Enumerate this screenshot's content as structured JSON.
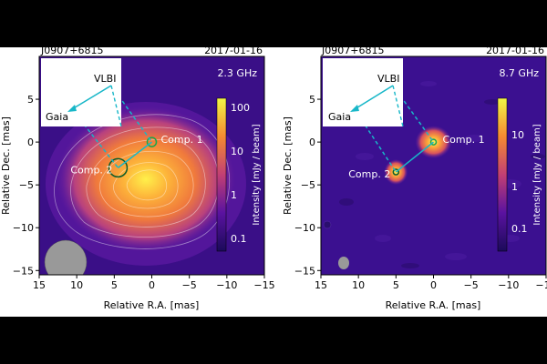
{
  "figure": {
    "panels": [
      {
        "source": "J0907+6815",
        "date": "2017-01-16",
        "frequency": "2.3 GHz",
        "colorbar_label": "Intensity  [mJy / beam]",
        "colorbar_ticks": [
          "100",
          "10",
          "1",
          "0.1"
        ],
        "inset": {
          "top_label": "VLBI",
          "left_label": "Gaia"
        },
        "components": [
          {
            "label": "Comp. 1",
            "x": 0,
            "y": 0
          },
          {
            "label": "Comp. 2",
            "x": 4.5,
            "y": -3
          }
        ]
      },
      {
        "source": "J0907+6815",
        "date": "2017-01-16",
        "frequency": "8.7 GHz",
        "colorbar_label": "Intensity  [mJy / beam]",
        "colorbar_ticks": [
          "10",
          "1",
          "0.1"
        ],
        "inset": {
          "top_label": "VLBI",
          "left_label": "Gaia"
        },
        "components": [
          {
            "label": "Comp. 1",
            "x": 0,
            "y": 0
          },
          {
            "label": "Comp. 2",
            "x": 5,
            "y": -3.5
          }
        ]
      }
    ],
    "axes": {
      "xlabel": "Relative R.A. [mas]",
      "ylabel": "Relative Dec. [mas]",
      "xticks": [
        15,
        10,
        5,
        0,
        -5,
        -10,
        -15
      ],
      "yticks": [
        5,
        0,
        -5,
        -10,
        -15
      ],
      "xlim": [
        15,
        -15
      ],
      "ylim": [
        -15.5,
        10
      ]
    },
    "colors": {
      "background": "#3a0f87",
      "arrow": "#18b7c8",
      "beam": "#999999"
    }
  }
}
